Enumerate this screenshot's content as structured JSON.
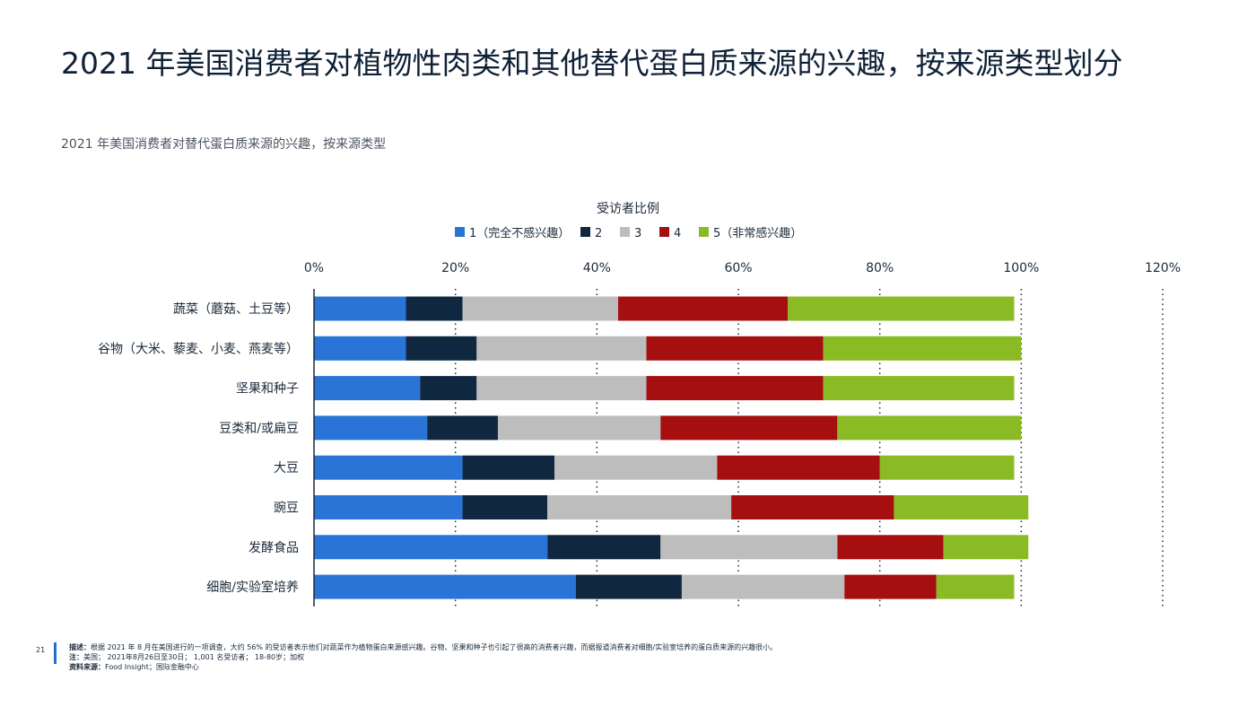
{
  "page": {
    "title": "2021 年美国消费者对植物性肉类和其他替代蛋白质来源的兴趣，按来源类型划分",
    "subtitle": "2021 年美国消费者对替代蛋白质来源的兴趣，按来源类型",
    "page_number": "21"
  },
  "footer": {
    "description_label": "描述：",
    "description": "根据 2021 年 8 月在美国进行的一项调查，大约 56% 的受访者表示他们对蔬菜作为植物蛋白来源感兴趣。谷物、坚果和种子也引起了很高的消费者兴趣，而据报道消费者对细胞/实验室培养的蛋白质来源的兴趣很小。",
    "note_label": "注：",
    "note": "美国； 2021年8月26日至30日； 1,001 名受访者； 18-80岁；加权",
    "source_label": "资料来源：",
    "source": "Food Insight；国际金融中心"
  },
  "chart_data": {
    "type": "bar",
    "orientation": "horizontal",
    "stacked": true,
    "title": "受访者比例",
    "xlim": [
      0,
      120
    ],
    "xticks": [
      "0%",
      "20%",
      "40%",
      "60%",
      "80%",
      "100%",
      "120%"
    ],
    "grid": "vertical dotted",
    "legend_position": "top",
    "categories": [
      "蔬菜（蘑菇、土豆等）",
      "谷物（大米、藜麦、小麦、燕麦等）",
      "坚果和种子",
      "豆类和/或扁豆",
      "大豆",
      "豌豆",
      "发酵食品",
      "细胞/实验室培养"
    ],
    "series": [
      {
        "name": "1（完全不感兴趣）",
        "color": "#2a74d8",
        "values": [
          13,
          13,
          15,
          16,
          21,
          21,
          33,
          37
        ]
      },
      {
        "name": "2",
        "color": "#0f2840",
        "values": [
          8,
          10,
          8,
          10,
          13,
          12,
          16,
          15
        ]
      },
      {
        "name": "3",
        "color": "#bdbdbd",
        "values": [
          22,
          24,
          24,
          23,
          23,
          26,
          25,
          23
        ]
      },
      {
        "name": "4",
        "color": "#a50f0f",
        "values": [
          24,
          25,
          25,
          25,
          23,
          23,
          15,
          13
        ]
      },
      {
        "name": "5（非常感兴趣）",
        "color": "#8aba24",
        "values": [
          32,
          28,
          27,
          26,
          19,
          19,
          12,
          11
        ]
      }
    ]
  }
}
